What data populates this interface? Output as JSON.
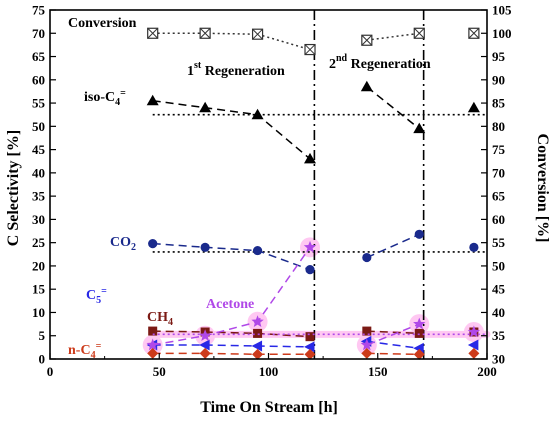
{
  "chart_data": {
    "type": "line",
    "xlabel": "Time On Stream [h]",
    "ylabel_left": "C Selectivity [%]",
    "ylabel_right": "Conversion [%]",
    "xlim": [
      0,
      200
    ],
    "ylim_left": [
      0,
      75
    ],
    "ylim_right": [
      30,
      105
    ],
    "x_ticks": [
      "0",
      "50",
      "100",
      "150",
      "200"
    ],
    "y_left_ticks": [
      "0",
      "5",
      "10",
      "15",
      "20",
      "25",
      "30",
      "35",
      "40",
      "45",
      "50",
      "55",
      "60",
      "65",
      "70",
      "75"
    ],
    "y_right_ticks": [
      "30",
      "35",
      "40",
      "45",
      "50",
      "55",
      "60",
      "65",
      "70",
      "75",
      "80",
      "85",
      "90",
      "95",
      "100",
      "105"
    ],
    "regeneration_x": [
      121,
      171
    ],
    "colors": {
      "conversion": "#333333",
      "iso": "#000000",
      "co2": "#1a2a8c",
      "c5": "#2828e6",
      "ch4": "#7b1a14",
      "acetone": "#b048e8",
      "nc4": "#cc3a1a",
      "highlight": "#ffc8f2"
    },
    "annotations": {
      "conversion": "Conversion",
      "iso": {
        "main": "iso-C",
        "sub": "4",
        "sup": "="
      },
      "co2": {
        "main": "CO",
        "sub": "2"
      },
      "c5": {
        "main": "C",
        "sub": "5",
        "sup": "="
      },
      "ch4": {
        "main": "CH",
        "sub": "4"
      },
      "acetone": "Acetone",
      "nc4": {
        "main": "n-C",
        "sub": "4",
        "sup": "="
      },
      "regen1": {
        "num": "1",
        "sup": "st",
        "rest": " Regeneration"
      },
      "regen2": {
        "num": "2",
        "sup": "nd",
        "rest": " Regeneration"
      }
    },
    "series": [
      {
        "key": "conversion",
        "axis": "right",
        "marker": "boxx",
        "dash": "2,3",
        "segments": [
          [
            0,
            3
          ],
          [
            4,
            5
          ]
        ],
        "x": [
          47,
          71,
          95,
          119,
          145,
          169,
          194
        ],
        "y": [
          100,
          100,
          99.8,
          96.5,
          98.5,
          100,
          100
        ]
      },
      {
        "key": "iso",
        "axis": "left",
        "marker": "triangle",
        "dash": "8,5",
        "segments": [
          [
            0,
            3
          ],
          [
            4,
            5
          ]
        ],
        "x": [
          47,
          71,
          95,
          119,
          145,
          169,
          194
        ],
        "y": [
          55.5,
          54,
          52.5,
          43,
          58.5,
          49.5,
          54
        ],
        "ref_line": {
          "y": 52.5,
          "x": [
            47,
            200
          ]
        }
      },
      {
        "key": "co2",
        "axis": "left",
        "marker": "circle",
        "dash": "8,5",
        "segments": [
          [
            0,
            3
          ],
          [
            4,
            5
          ]
        ],
        "x": [
          47,
          71,
          95,
          119,
          145,
          169,
          194
        ],
        "y": [
          24.8,
          24.0,
          23.3,
          19.2,
          21.8,
          26.8,
          24.0
        ],
        "ref_line": {
          "y": 23.0,
          "x": [
            47,
            200
          ]
        }
      },
      {
        "key": "c5",
        "axis": "left",
        "marker": "triangle_left",
        "dash": "8,5",
        "segments": [
          [
            0,
            3
          ],
          [
            4,
            5
          ]
        ],
        "x": [
          47,
          71,
          95,
          119,
          145,
          169,
          194
        ],
        "y": [
          3.0,
          3.0,
          2.8,
          2.6,
          3.8,
          2.3,
          3.0
        ]
      },
      {
        "key": "ch4",
        "axis": "left",
        "marker": "square",
        "dash": "8,5",
        "segments": [
          [
            0,
            3
          ],
          [
            4,
            5
          ]
        ],
        "x": [
          47,
          71,
          95,
          119,
          145,
          169,
          194
        ],
        "y": [
          6.0,
          5.8,
          5.5,
          4.8,
          6.0,
          5.5,
          5.8
        ]
      },
      {
        "key": "acetone",
        "axis": "left",
        "marker": "star",
        "dash": "8,5",
        "segments": [
          [
            0,
            3
          ],
          [
            4,
            5
          ]
        ],
        "x": [
          47,
          71,
          95,
          119,
          145,
          169,
          194
        ],
        "y": [
          3.0,
          5.0,
          8.0,
          24.0,
          3.0,
          7.5,
          5.8
        ],
        "ref_line": {
          "y": 5.3,
          "x": [
            47,
            200
          ]
        }
      },
      {
        "key": "nc4",
        "axis": "left",
        "marker": "diamond",
        "dash": "8,5",
        "segments": [
          [
            0,
            3
          ],
          [
            4,
            5
          ]
        ],
        "x": [
          47,
          71,
          95,
          119,
          145,
          169,
          194
        ],
        "y": [
          1.2,
          1.2,
          1.0,
          1.0,
          1.2,
          1.0,
          1.2
        ]
      }
    ]
  }
}
